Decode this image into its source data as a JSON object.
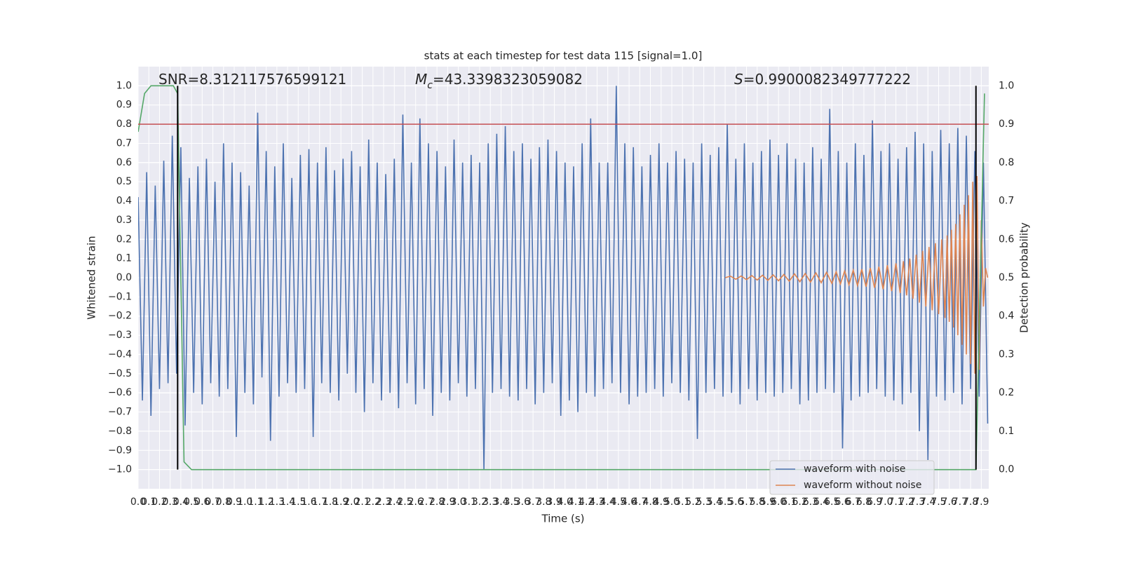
{
  "chart_data": {
    "type": "line",
    "title": "stats at each timestep for test data 115 [signal=1.0]",
    "xlabel": "Time (s)",
    "ylabel": "Whitened strain",
    "y2label": "Detection probability",
    "annotations": [
      {
        "text": "SNR=8.312117576599121"
      },
      {
        "symbol": "M",
        "subscript": "c",
        "text": "=43.3398323059082"
      },
      {
        "symbol": "S",
        "text": "=0.9900082349777222"
      }
    ],
    "xlim": [
      0,
      7.97
    ],
    "ylim": [
      -1.1,
      1.1
    ],
    "y2lim": [
      -0.05,
      1.05
    ],
    "grid": true,
    "legend": "lower right",
    "xticks": [
      {
        "value": 0,
        "label": "0.0"
      },
      0.1,
      0.2,
      0.3,
      0.4,
      0.5,
      0.6,
      0.7,
      0.8,
      0.9,
      {
        "value": 1,
        "label": "1.0"
      },
      1.1,
      1.2,
      1.3,
      1.4,
      1.5,
      1.6,
      1.7,
      1.8,
      1.9,
      {
        "value": 2,
        "label": "2.0"
      },
      2.1,
      2.2,
      2.3,
      2.4,
      2.5,
      2.6,
      2.7,
      2.8,
      2.9,
      {
        "value": 3,
        "label": "3.0"
      },
      3.1,
      3.2,
      3.3,
      3.4,
      3.5,
      3.6,
      3.7,
      3.8,
      3.9,
      {
        "value": 4,
        "label": "4.0"
      },
      4.1,
      4.2,
      4.3,
      4.4,
      4.5,
      4.6,
      4.7,
      4.8,
      4.9,
      {
        "value": 5,
        "label": "5.0"
      },
      5.1,
      5.2,
      5.3,
      5.4,
      5.5,
      5.6,
      5.7,
      5.8,
      5.9,
      {
        "value": 6,
        "label": "6.0"
      },
      6.1,
      6.2,
      6.3,
      6.4,
      6.5,
      6.6,
      6.7,
      6.8,
      6.9,
      {
        "value": 7,
        "label": "7.0"
      },
      7.1,
      7.2,
      7.3,
      7.4,
      7.5,
      7.6,
      7.7,
      7.8,
      7.9
    ],
    "yticks": [
      {
        "value": -1,
        "label": "−1.0"
      },
      {
        "value": -0.9,
        "label": "−0.9"
      },
      {
        "value": -0.8,
        "label": "−0.8"
      },
      {
        "value": -0.7,
        "label": "−0.7"
      },
      {
        "value": -0.6,
        "label": "−0.6"
      },
      {
        "value": -0.5,
        "label": "−0.5"
      },
      {
        "value": -0.4,
        "label": "−0.4"
      },
      {
        "value": -0.3,
        "label": "−0.3"
      },
      {
        "value": -0.2,
        "label": "−0.2"
      },
      {
        "value": -0.1,
        "label": "−0.1"
      },
      {
        "value": 0,
        "label": "0.0"
      },
      0.1,
      0.2,
      0.3,
      0.4,
      0.5,
      0.6,
      0.7,
      0.8,
      0.9,
      {
        "value": 1,
        "label": "1.0"
      }
    ],
    "y2ticks": [
      {
        "value": 0,
        "label": "0.0"
      },
      0.1,
      0.2,
      0.3,
      0.4,
      0.5,
      0.6,
      0.7,
      0.8,
      0.9,
      {
        "value": 1,
        "label": "1.0"
      }
    ],
    "series": [
      {
        "name": "waveform with noise",
        "color": "#4c72b0",
        "x": [
          0,
          0.04,
          0.08,
          0.12,
          0.16,
          0.2,
          0.24,
          0.28,
          0.32,
          0.36,
          0.4,
          0.44,
          0.48,
          0.52,
          0.56,
          0.6,
          0.64,
          0.68,
          0.72,
          0.76,
          0.8,
          0.84,
          0.88,
          0.92,
          0.96,
          1,
          1.04,
          1.08,
          1.12,
          1.16,
          1.2,
          1.24,
          1.28,
          1.32,
          1.36,
          1.4,
          1.44,
          1.48,
          1.52,
          1.56,
          1.6,
          1.64,
          1.68,
          1.72,
          1.76,
          1.8,
          1.84,
          1.88,
          1.92,
          1.96,
          2,
          2.04,
          2.08,
          2.12,
          2.16,
          2.2,
          2.24,
          2.28,
          2.32,
          2.36,
          2.4,
          2.44,
          2.48,
          2.52,
          2.56,
          2.6,
          2.64,
          2.68,
          2.72,
          2.76,
          2.8,
          2.84,
          2.88,
          2.92,
          2.96,
          3,
          3.04,
          3.08,
          3.12,
          3.16,
          3.2,
          3.24,
          3.28,
          3.32,
          3.36,
          3.4,
          3.44,
          3.48,
          3.52,
          3.56,
          3.6,
          3.64,
          3.68,
          3.72,
          3.76,
          3.8,
          3.84,
          3.88,
          3.92,
          3.96,
          4,
          4.04,
          4.08,
          4.12,
          4.16,
          4.2,
          4.24,
          4.28,
          4.32,
          4.36,
          4.4,
          4.44,
          4.48,
          4.52,
          4.56,
          4.6,
          4.64,
          4.68,
          4.72,
          4.76,
          4.8,
          4.84,
          4.88,
          4.92,
          4.96,
          5,
          5.04,
          5.08,
          5.12,
          5.16,
          5.2,
          5.24,
          5.28,
          5.32,
          5.36,
          5.4,
          5.44,
          5.48,
          5.52,
          5.56,
          5.6,
          5.64,
          5.68,
          5.72,
          5.76,
          5.8,
          5.84,
          5.88,
          5.92,
          5.96,
          6,
          6.04,
          6.08,
          6.12,
          6.16,
          6.2,
          6.24,
          6.28,
          6.32,
          6.36,
          6.4,
          6.44,
          6.48,
          6.52,
          6.56,
          6.6,
          6.64,
          6.68,
          6.72,
          6.76,
          6.8,
          6.84,
          6.88,
          6.92,
          6.96,
          7,
          7.04,
          7.08,
          7.12,
          7.16,
          7.2,
          7.24,
          7.28,
          7.32,
          7.36,
          7.4,
          7.44,
          7.48,
          7.52,
          7.56,
          7.6,
          7.64,
          7.68,
          7.72,
          7.76,
          7.8,
          7.84,
          7.88,
          7.92,
          7.96
        ],
        "values": [
          0.42,
          -0.64,
          0.55,
          -0.72,
          0.48,
          -0.58,
          0.61,
          -0.55,
          0.74,
          -0.5,
          0.68,
          -0.77,
          0.52,
          -0.6,
          0.58,
          -0.66,
          0.62,
          -0.55,
          0.5,
          -0.62,
          0.7,
          -0.58,
          0.6,
          -0.83,
          0.55,
          -0.6,
          0.48,
          -0.66,
          0.86,
          -0.52,
          0.66,
          -0.85,
          0.58,
          -0.62,
          0.7,
          -0.55,
          0.52,
          -0.6,
          0.64,
          -0.58,
          0.67,
          -0.83,
          0.6,
          -0.55,
          0.68,
          -0.6,
          0.56,
          -0.64,
          0.62,
          -0.5,
          0.66,
          -0.6,
          0.58,
          -0.7,
          0.72,
          -0.55,
          0.6,
          -0.64,
          0.54,
          -0.6,
          0.62,
          -0.68,
          0.85,
          -0.55,
          0.6,
          -0.66,
          0.83,
          -0.58,
          0.7,
          -0.72,
          0.66,
          -0.6,
          0.58,
          -0.64,
          0.72,
          -0.55,
          0.6,
          -0.62,
          0.64,
          -0.58,
          0.6,
          -1.0,
          0.7,
          -0.6,
          0.75,
          -0.58,
          0.79,
          -0.62,
          0.66,
          -0.64,
          0.7,
          -0.58,
          0.62,
          -0.66,
          0.68,
          -0.6,
          0.72,
          -0.55,
          0.66,
          -0.72,
          0.6,
          -0.64,
          0.58,
          -0.7,
          0.7,
          -0.6,
          0.83,
          -0.62,
          0.6,
          -0.58,
          0.6,
          -0.55,
          1.0,
          -0.6,
          0.7,
          -0.66,
          0.68,
          -0.62,
          0.58,
          -0.6,
          0.64,
          -0.58,
          0.7,
          -0.62,
          0.6,
          -0.55,
          0.66,
          -0.6,
          0.62,
          -0.64,
          0.6,
          -0.84,
          0.7,
          -0.6,
          0.64,
          -0.58,
          0.68,
          -0.62,
          0.8,
          -0.6,
          0.62,
          -0.66,
          0.7,
          -0.58,
          0.6,
          -0.64,
          0.66,
          -0.6,
          0.72,
          -0.62,
          0.64,
          -0.6,
          0.7,
          -0.58,
          0.62,
          -0.66,
          0.6,
          -0.64,
          0.68,
          -0.6,
          0.62,
          -0.58,
          0.88,
          -0.6,
          0.66,
          -0.89,
          0.6,
          -0.64,
          0.7,
          -0.62,
          0.64,
          -0.6,
          0.82,
          -0.58,
          0.66,
          -0.62,
          0.7,
          -0.64,
          0.62,
          -0.66,
          0.68,
          -0.6,
          0.76,
          -0.8,
          0.7,
          -0.95,
          0.66,
          -0.62,
          0.77,
          -0.64,
          0.7,
          -0.6,
          0.78,
          -0.66,
          0.74,
          -0.58,
          0.66,
          -0.62,
          0.6,
          -0.76
        ]
      },
      {
        "name": "waveform without noise",
        "color": "#dd8452",
        "x": [
          5.5,
          5.55,
          5.6,
          5.65,
          5.7,
          5.75,
          5.8,
          5.85,
          5.9,
          5.95,
          6,
          6.05,
          6.1,
          6.15,
          6.2,
          6.25,
          6.3,
          6.35,
          6.4,
          6.45,
          6.5,
          6.54,
          6.58,
          6.62,
          6.66,
          6.7,
          6.74,
          6.78,
          6.82,
          6.86,
          6.9,
          6.94,
          6.98,
          7.02,
          7.06,
          7.1,
          7.14,
          7.17,
          7.2,
          7.23,
          7.26,
          7.29,
          7.32,
          7.35,
          7.38,
          7.41,
          7.44,
          7.47,
          7.5,
          7.53,
          7.56,
          7.58,
          7.6,
          7.62,
          7.64,
          7.66,
          7.68,
          7.7,
          7.72,
          7.74,
          7.76,
          7.78,
          7.8,
          7.82,
          7.84,
          7.86,
          7.88,
          7.9,
          7.92,
          7.94,
          7.96
        ],
        "values": [
          0,
          0.008,
          -0.008,
          0.009,
          -0.01,
          0.011,
          -0.012,
          0.013,
          -0.014,
          0.015,
          -0.016,
          0.017,
          -0.018,
          0.02,
          -0.021,
          0.022,
          -0.023,
          0.025,
          -0.026,
          0.028,
          -0.03,
          0.031,
          -0.033,
          0.035,
          -0.037,
          0.039,
          -0.041,
          0.044,
          -0.047,
          0.05,
          -0.053,
          0.057,
          -0.06,
          0.065,
          -0.07,
          0.075,
          -0.08,
          0.086,
          -0.092,
          0.1,
          -0.11,
          0.12,
          -0.13,
          0.14,
          -0.15,
          0.16,
          -0.17,
          0.18,
          -0.19,
          0.2,
          -0.21,
          0.22,
          -0.23,
          0.25,
          -0.26,
          0.28,
          -0.3,
          0.33,
          -0.35,
          0.38,
          -0.4,
          0.43,
          -0.45,
          0.5,
          -0.5,
          0.53,
          -0.48,
          0.3,
          -0.15,
          0.05,
          0
        ]
      },
      {
        "color": "#55a868",
        "axis": "y2",
        "x": [
          0,
          0.06,
          0.12,
          0.2,
          0.33,
          0.37,
          0.43,
          0.5,
          7.85,
          7.93
        ],
        "values": [
          0.88,
          0.98,
          1.0,
          1.0,
          1.0,
          0.98,
          0.02,
          0.0,
          0.0,
          0.98
        ]
      }
    ],
    "hlines": [
      {
        "y": 0.9,
        "axis": "y2",
        "color": "#c44e52"
      }
    ],
    "vlines": [
      {
        "x": 0.37,
        "ymin": -1,
        "ymax": 1,
        "color": "#000000"
      },
      {
        "x": 7.85,
        "ymin": -1,
        "ymax": 1,
        "color": "#000000"
      }
    ]
  }
}
